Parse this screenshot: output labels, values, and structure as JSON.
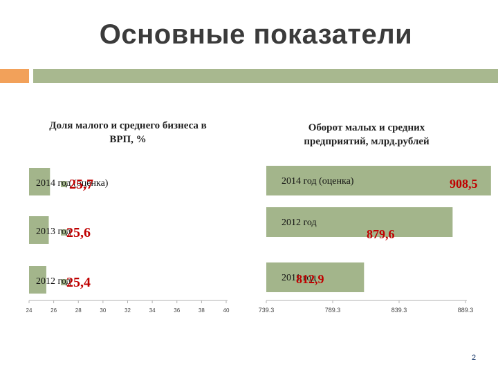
{
  "slide": {
    "title": "Основные показатели",
    "page_number": "2"
  },
  "colors": {
    "accent_orange": "#f2a15a",
    "accent_green": "#a8b88f",
    "bar_fill": "#a3b58b",
    "value_label": "#c00000"
  },
  "chart_data": [
    {
      "type": "bar",
      "orientation": "horizontal",
      "title": "Доля малого и среднего бизнеса в ВРП, %",
      "categories": [
        "2014 год (оценка)",
        "2013 год",
        "2012 год"
      ],
      "values": [
        25.7,
        25.6,
        25.4
      ],
      "value_labels": [
        "25,7",
        "25,6",
        "25,4"
      ],
      "xlim": [
        24,
        40
      ],
      "x_ticks": [
        "24",
        "26",
        "28",
        "30",
        "32",
        "34",
        "36",
        "38",
        "40"
      ],
      "grid": false,
      "legend": "none"
    },
    {
      "type": "bar",
      "orientation": "horizontal",
      "title": "Оборот малых и средних предприятий, млрд.рублей",
      "categories": [
        "2014 год (оценка)",
        "2012 год",
        "2011 год"
      ],
      "values": [
        908.5,
        879.6,
        812.9
      ],
      "value_labels": [
        "908,5",
        "879,6",
        "812,9"
      ],
      "xlim": [
        739.3,
        889.3
      ],
      "x_ticks": [
        "739.3",
        "789.3",
        "839.3",
        "889.3"
      ],
      "grid": false,
      "legend": "none"
    }
  ]
}
